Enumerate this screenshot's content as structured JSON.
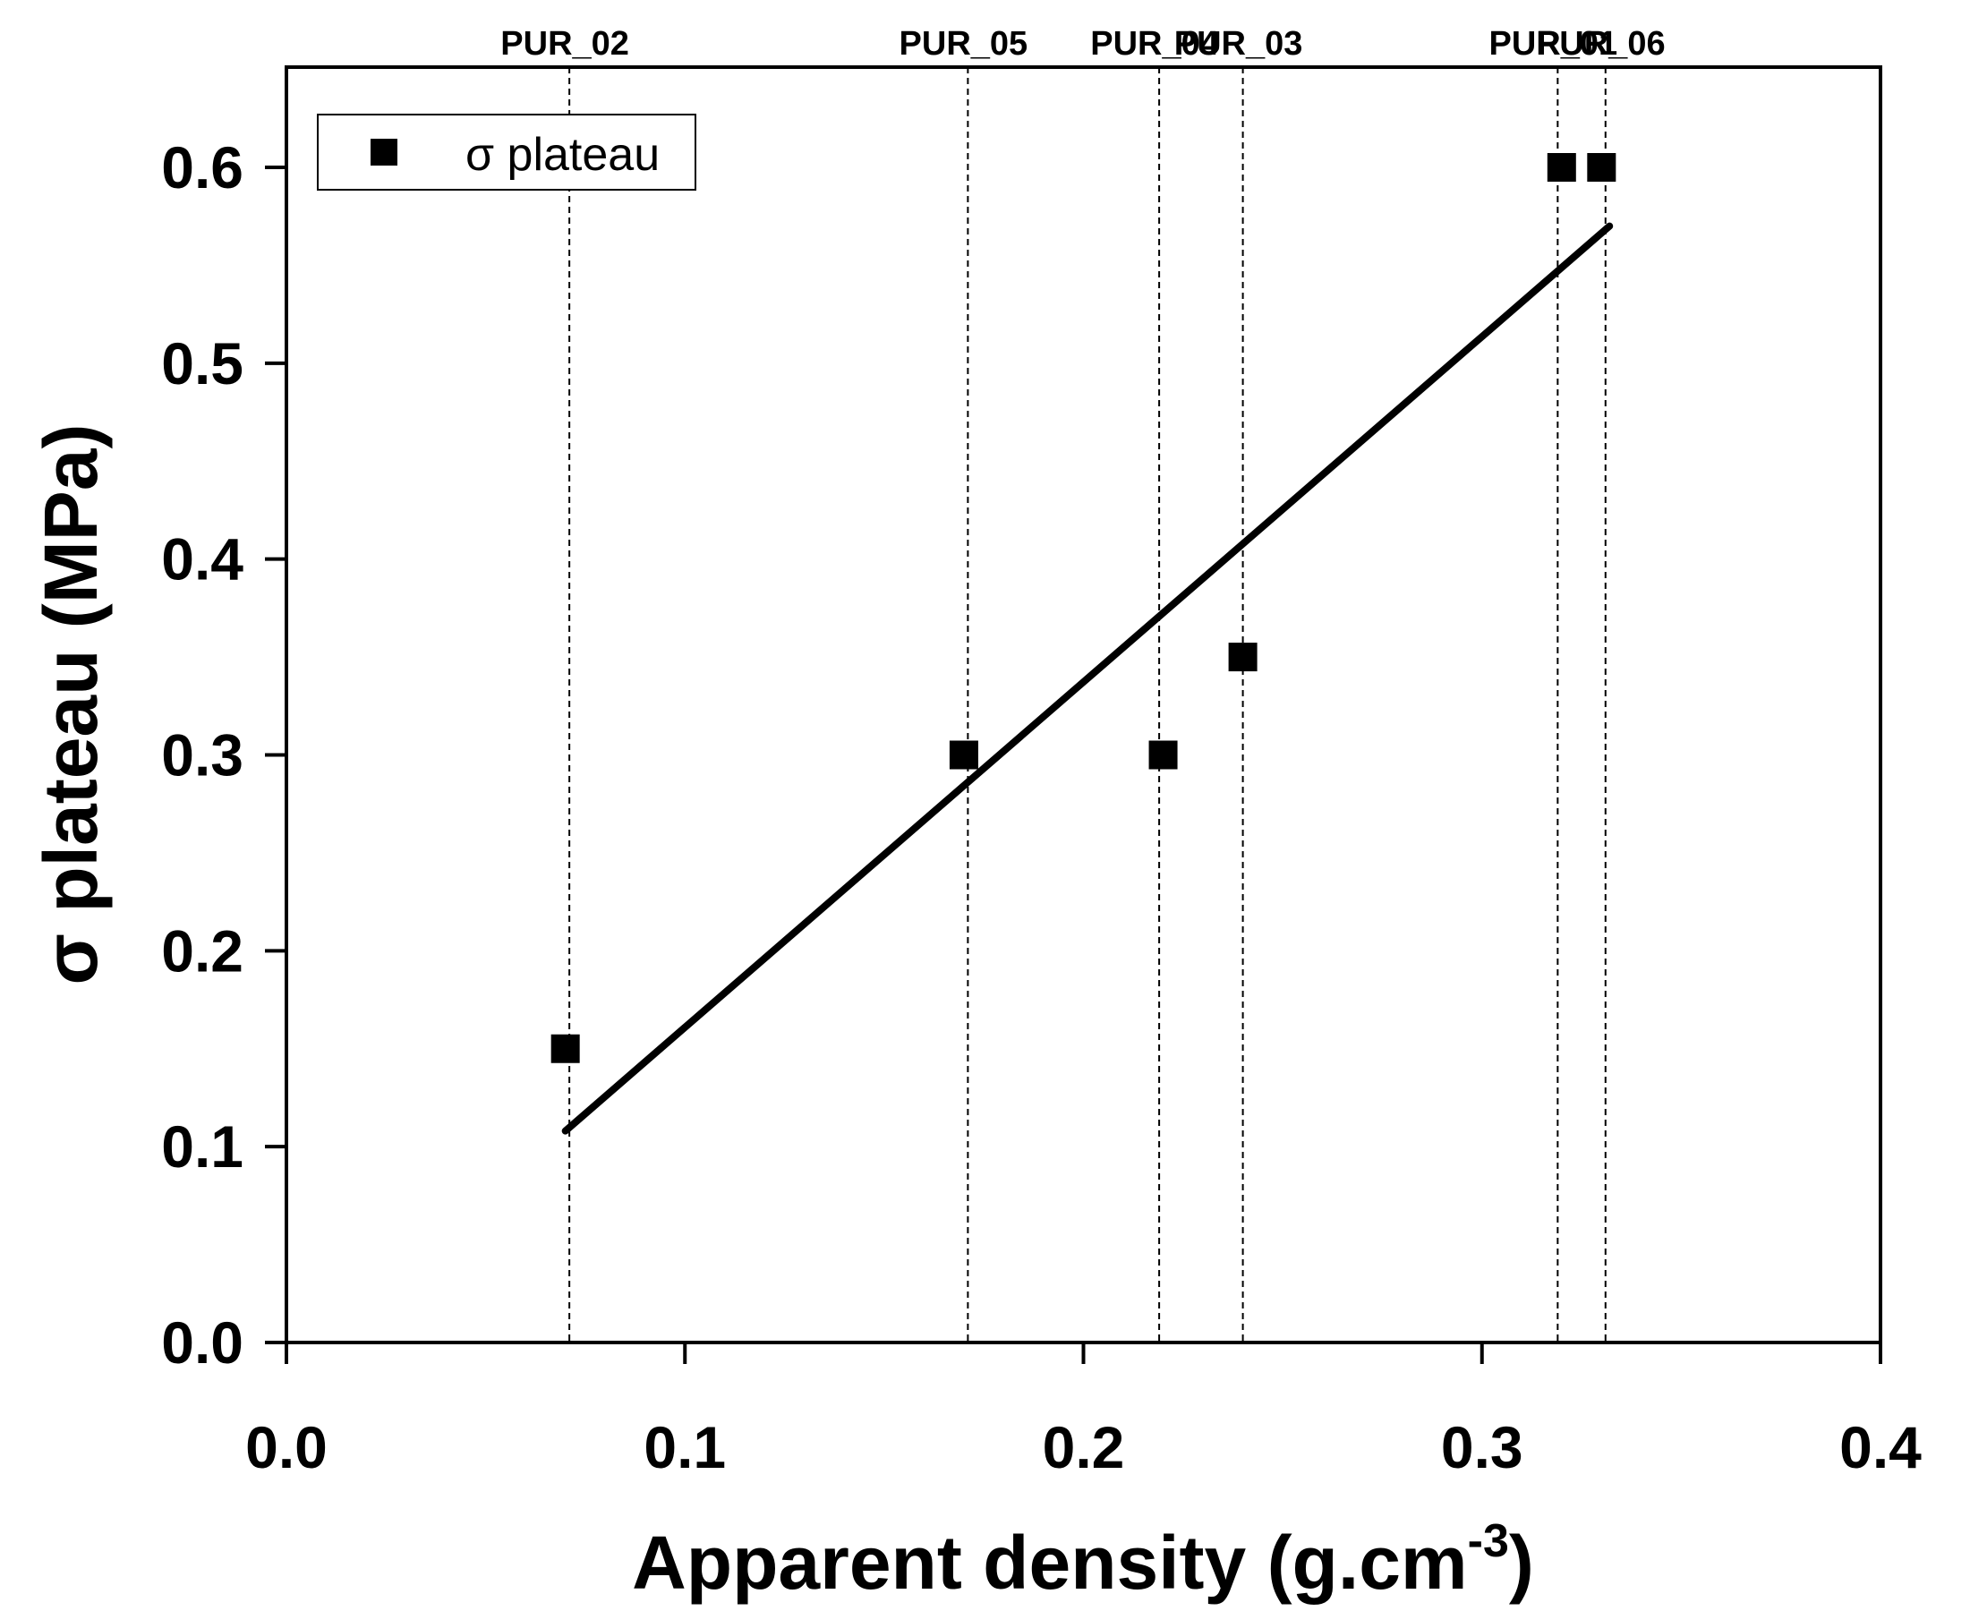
{
  "chart_data": {
    "type": "scatter",
    "xlabel": "Apparent density (g.cm",
    "xlabel_superscript": "-3",
    "xlabel_suffix": ")",
    "ylabel": "σ plateau (MPa)",
    "xlim": [
      0.0,
      0.4
    ],
    "ylim": [
      0.0,
      0.65
    ],
    "x_ticks": [
      "0.0",
      "0.1",
      "0.2",
      "0.3",
      "0.4"
    ],
    "x_tick_values": [
      0.0,
      0.1,
      0.2,
      0.3,
      0.4
    ],
    "y_ticks": [
      "0.0",
      "0.1",
      "0.2",
      "0.3",
      "0.4",
      "0.5",
      "0.6"
    ],
    "y_tick_values": [
      0.0,
      0.1,
      0.2,
      0.3,
      0.4,
      0.5,
      0.6
    ],
    "grid": false,
    "legend": {
      "position": "top-left",
      "entries": [
        "σ plateau"
      ]
    },
    "series": [
      {
        "name": "σ plateau",
        "marker": "square",
        "color": "#000000",
        "points": [
          {
            "x": 0.07,
            "y": 0.15
          },
          {
            "x": 0.17,
            "y": 0.3
          },
          {
            "x": 0.22,
            "y": 0.3
          },
          {
            "x": 0.24,
            "y": 0.35
          },
          {
            "x": 0.32,
            "y": 0.6
          },
          {
            "x": 0.33,
            "y": 0.6
          }
        ]
      }
    ],
    "fit_line": {
      "x": [
        0.07,
        0.332
      ],
      "y": [
        0.108,
        0.57
      ],
      "color": "#000000"
    },
    "reference_lines": [
      {
        "label": "PUR_02",
        "x": 0.071
      },
      {
        "label": "PUR_05",
        "x": 0.171
      },
      {
        "label": "PUR_04",
        "x": 0.219
      },
      {
        "label": "PUR_03",
        "x": 0.24
      },
      {
        "label": "PUR_01",
        "x": 0.319
      },
      {
        "label": "PUR_06",
        "x": 0.331
      }
    ]
  }
}
